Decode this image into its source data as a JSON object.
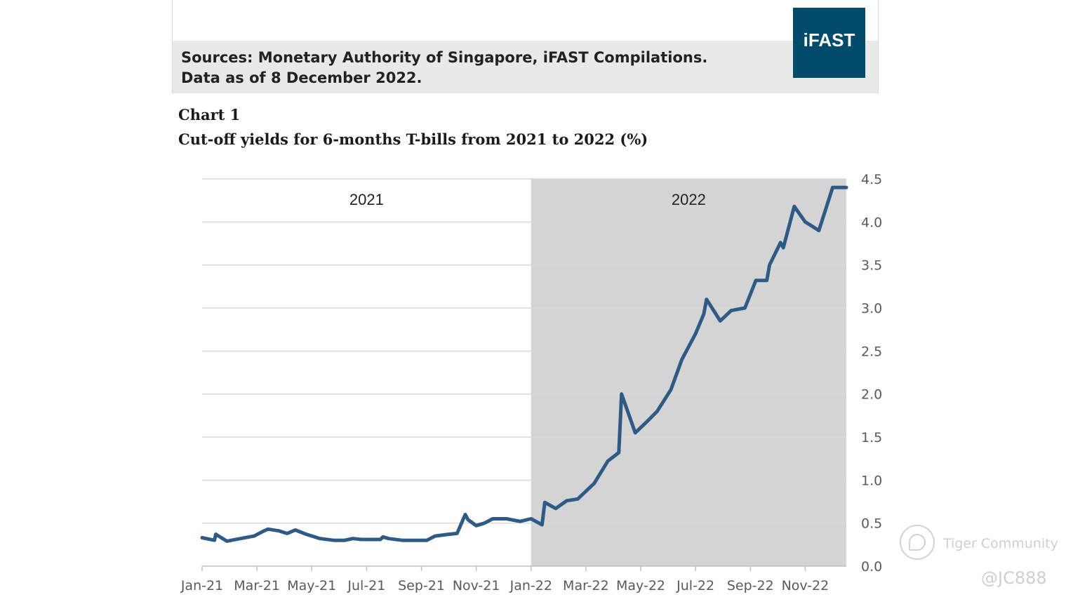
{
  "source_card": {
    "line1": "Sources: Monetary Authority of Singapore, iFAST Compilations.",
    "line2": "Data as of 8 December 2022.",
    "logo_text": "iFAST",
    "logo_color": "#004a6b"
  },
  "chart_kicker": "Chart 1",
  "chart_title": "Cut-off yields for 6-months T-bills from 2021 to 2022 (%)",
  "watermark": {
    "text": "Tiger Community",
    "handle": "@JC888",
    "icon": "tiger-community-logo-icon"
  },
  "chart_data": {
    "type": "line",
    "title": "Cut-off yields for 6-months T-bills from 2021 to 2022 (%)",
    "xlabel": "",
    "ylabel": "",
    "x_tick_labels": [
      "Jan-21",
      "Mar-21",
      "May-21",
      "Jul-21",
      "Sep-21",
      "Nov-21",
      "Jan-22",
      "Mar-22",
      "May-22",
      "Jul-22",
      "Sep-22",
      "Nov-22"
    ],
    "x_range": [
      0,
      23.5
    ],
    "ylim": [
      0,
      4.5
    ],
    "y_ticks": [
      "0.0",
      "0.5",
      "1.0",
      "1.5",
      "2.0",
      "2.5",
      "3.0",
      "3.5",
      "4.0",
      "4.5"
    ],
    "y_axis_position": "right",
    "grid": true,
    "line_color": "#2e5b86",
    "shaded_band_color": "#d4d4d4",
    "period_labels": [
      {
        "label": "2021",
        "from": 0,
        "to": 12,
        "shaded": false
      },
      {
        "label": "2022",
        "from": 12,
        "to": 23.5,
        "shaded": true
      }
    ],
    "series": [
      {
        "x": [
          0,
          0.45,
          0.5,
          0.9,
          1.4,
          1.9,
          2.2,
          2.4,
          2.8,
          3.0,
          3.1,
          3.4,
          3.8,
          4.3,
          4.8,
          5.2,
          5.5,
          5.8,
          6.2,
          6.5,
          6.6,
          6.8,
          7.3,
          7.8,
          8.2,
          8.5,
          9.0,
          9.3,
          9.6,
          9.7,
          10.0,
          10.3,
          10.6,
          11.1,
          11.6,
          12.0,
          12.4,
          12.5,
          12.9,
          13.3,
          13.7,
          14.3,
          14.8,
          15.2,
          15.3,
          15.8,
          16.2,
          16.6,
          17.1,
          17.5,
          18.0,
          18.3,
          18.4,
          18.9,
          19.3,
          19.8,
          20.2,
          20.6,
          20.7,
          21.1,
          21.2,
          21.6,
          22.0,
          22.5,
          23.0,
          23.5
        ],
        "values": [
          0.33,
          0.3,
          0.37,
          0.29,
          0.32,
          0.35,
          0.4,
          0.43,
          0.41,
          0.39,
          0.38,
          0.42,
          0.37,
          0.32,
          0.3,
          0.3,
          0.32,
          0.31,
          0.31,
          0.31,
          0.34,
          0.32,
          0.3,
          0.3,
          0.3,
          0.35,
          0.37,
          0.38,
          0.6,
          0.54,
          0.47,
          0.5,
          0.55,
          0.55,
          0.52,
          0.55,
          0.48,
          0.74,
          0.67,
          0.76,
          0.78,
          0.96,
          1.22,
          1.32,
          2.0,
          1.55,
          1.67,
          1.8,
          2.05,
          2.4,
          2.7,
          2.93,
          3.1,
          2.85,
          2.97,
          3.0,
          3.32,
          3.32,
          3.5,
          3.76,
          3.7,
          4.18,
          4.0,
          3.9,
          4.4,
          4.4
        ]
      }
    ]
  }
}
